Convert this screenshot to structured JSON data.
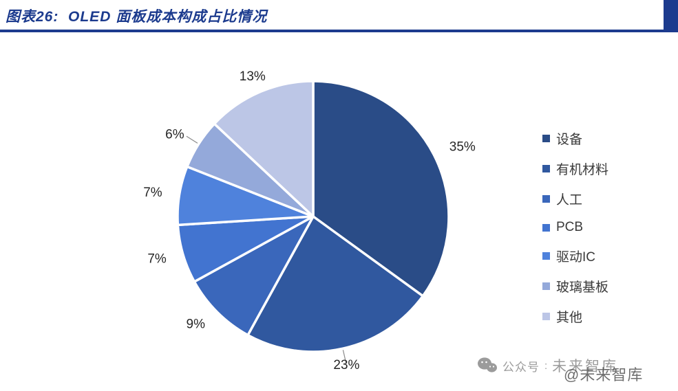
{
  "header": {
    "title": "图表26:  OLED 面板成本构成占比情况"
  },
  "theme": {
    "accent": "#1c3b8e",
    "label_text": "#262626",
    "legend_text": "#3a3a3a",
    "watermark_gray": "#9b9b9b",
    "watermark_dark": "#4a4a4a"
  },
  "chart_data": {
    "type": "pie",
    "title": "OLED 面板成本构成占比情况",
    "categories": [
      "设备",
      "有机材料",
      "人工",
      "PCB",
      "驱动IC",
      "玻璃基板",
      "其他"
    ],
    "values": [
      35,
      23,
      9,
      7,
      7,
      6,
      13
    ],
    "labels": [
      "35%",
      "23%",
      "9%",
      "7%",
      "7%",
      "6%",
      "13%"
    ],
    "colors": [
      "#2a4c87",
      "#30589f",
      "#3a67bb",
      "#4274d0",
      "#4f82dc",
      "#94a9da",
      "#bcc6e6"
    ],
    "legend_position": "right",
    "start_angle_deg": -90,
    "direction": "clockwise",
    "leader_line_indices": [
      1,
      5
    ]
  },
  "watermark": {
    "prefix": "公众号",
    "separator": ":",
    "name": "未来智库",
    "overlay": "@未来智库"
  }
}
